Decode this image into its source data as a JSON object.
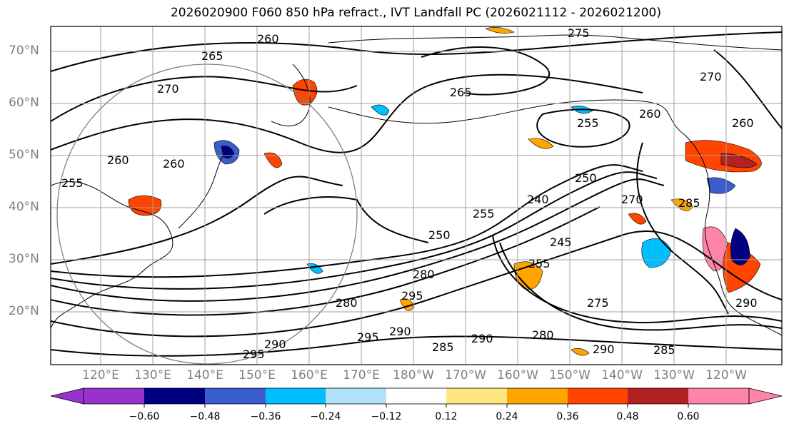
{
  "title": "2026020900 F060 850 hPa refract., IVT Landfall PC (2026021112 - 2026021200)",
  "latitude_labels": [
    "70°N",
    "60°N",
    "50°N",
    "40°N",
    "30°N",
    "20°N"
  ],
  "longitude_labels": [
    "120°E",
    "130°E",
    "140°E",
    "150°E",
    "160°E",
    "170°E",
    "180°W",
    "170°W",
    "160°W",
    "150°W",
    "140°W",
    "130°W",
    "120°W"
  ],
  "contour_labels": [
    "260",
    "265",
    "270",
    "275",
    "270",
    "265",
    "260",
    "255",
    "260",
    "260",
    "260",
    "255",
    "250",
    "255",
    "240",
    "245",
    "250",
    "255",
    "280",
    "275",
    "270",
    "285",
    "290",
    "295",
    "280",
    "290",
    "295",
    "290",
    "285",
    "295",
    "290",
    "290",
    "285",
    "280"
  ],
  "colorbar": {
    "tick_labels": [
      "−0.60",
      "−0.48",
      "−0.36",
      "−0.24",
      "−0.12",
      "0.12",
      "0.24",
      "0.36",
      "0.48",
      "0.60"
    ],
    "colors": [
      "#9932cc",
      "#000080",
      "#3a5fcd",
      "#00bfff",
      "#b0e0fa",
      "#ffffff",
      "#ffe680",
      "#ffa500",
      "#ff4500",
      "#b22222",
      "#ff85a8",
      "#ff85a8"
    ]
  },
  "colors": {
    "coastline": "#000000",
    "grid": "#a0a0a0",
    "contour": "#000000",
    "radius_circle": "#808080"
  }
}
